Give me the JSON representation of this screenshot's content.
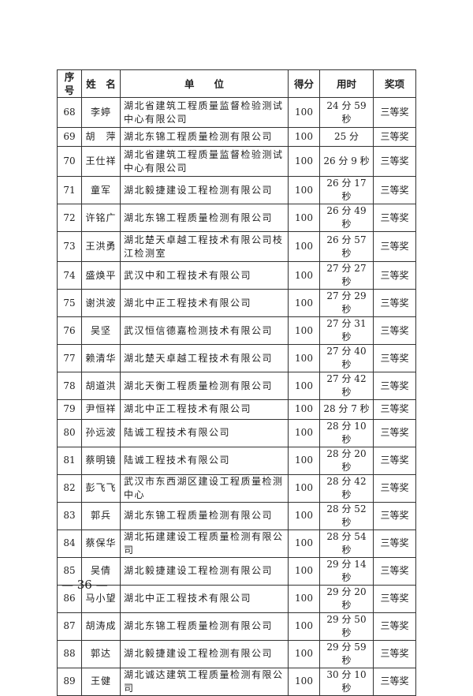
{
  "table": {
    "headers": [
      "序号",
      "姓　名",
      "单　　位",
      "得分",
      "用时",
      "奖项"
    ],
    "rows": [
      [
        "68",
        "李婷",
        "湖北省建筑工程质量监督检验测试中心有限公司",
        "100",
        "24 分 59 秒",
        "三等奖"
      ],
      [
        "69",
        "胡　萍",
        "湖北东锦工程质量检测有限公司",
        "100",
        "25 分",
        "三等奖"
      ],
      [
        "70",
        "王仕祥",
        "湖北省建筑工程质量监督检验测试中心有限公司",
        "100",
        "26 分 9 秒",
        "三等奖"
      ],
      [
        "71",
        "童军",
        "湖北毅捷建设工程检测有限公司",
        "100",
        "26 分 17 秒",
        "三等奖"
      ],
      [
        "72",
        "许铭广",
        "湖北东锦工程质量检测有限公司",
        "100",
        "26 分 49 秒",
        "三等奖"
      ],
      [
        "73",
        "王洪勇",
        "湖北楚天卓越工程技术有限公司枝江检测室",
        "100",
        "26 分 57 秒",
        "三等奖"
      ],
      [
        "74",
        "盛焕平",
        "武汉中和工程技术有限公司",
        "100",
        "27 分 27 秒",
        "三等奖"
      ],
      [
        "75",
        "谢洪波",
        "湖北中正工程技术有限公司",
        "100",
        "27 分 29 秒",
        "三等奖"
      ],
      [
        "76",
        "吴坚",
        "武汉恒信德嘉检测技术有限公司",
        "100",
        "27 分 31 秒",
        "三等奖"
      ],
      [
        "77",
        "赖清华",
        "湖北楚天卓越工程技术有限公司",
        "100",
        "27 分 40 秒",
        "三等奖"
      ],
      [
        "78",
        "胡道洪",
        "湖北天衡工程质量检测有限公司",
        "100",
        "27 分 42 秒",
        "三等奖"
      ],
      [
        "79",
        "尹恒祥",
        "湖北中正工程技术有限公司",
        "100",
        "28 分 7 秒",
        "三等奖"
      ],
      [
        "80",
        "孙远波",
        "陆诚工程技术有限公司",
        "100",
        "28 分 10 秒",
        "三等奖"
      ],
      [
        "81",
        "蔡明镜",
        "陆诚工程技术有限公司",
        "100",
        "28 分 20 秒",
        "三等奖"
      ],
      [
        "82",
        "彭飞飞",
        "武汉市东西湖区建设工程质量检测中心",
        "100",
        "28 分 42 秒",
        "三等奖"
      ],
      [
        "83",
        "郭兵",
        "湖北东锦工程质量检测有限公司",
        "100",
        "28 分 52 秒",
        "三等奖"
      ],
      [
        "84",
        "蔡保华",
        "湖北拓建建设工程质量检测有限公司",
        "100",
        "28 分 54 秒",
        "三等奖"
      ],
      [
        "85",
        "吴倩",
        "湖北毅捷建设工程检测有限公司",
        "100",
        "29 分 14 秒",
        "三等奖"
      ],
      [
        "86",
        "马小望",
        "湖北中正工程技术有限公司",
        "100",
        "29 分 20 秒",
        "三等奖"
      ],
      [
        "87",
        "胡涛成",
        "湖北东锦工程质量检测有限公司",
        "100",
        "29 分 50 秒",
        "三等奖"
      ],
      [
        "88",
        "郭达",
        "湖北毅捷建设工程检测有限公司",
        "100",
        "29 分 59 秒",
        "三等奖"
      ],
      [
        "89",
        "王健",
        "湖北诚达建筑工程质量检测有限公司",
        "100",
        "30 分 10 秒",
        "三等奖"
      ]
    ]
  },
  "footer": {
    "page_number": "— 36 —"
  }
}
